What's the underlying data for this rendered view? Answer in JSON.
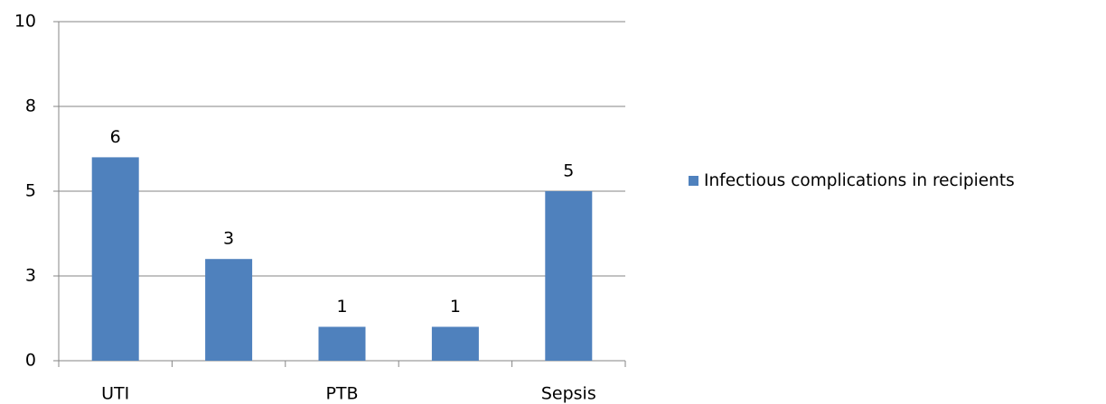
{
  "chart_data": {
    "type": "bar",
    "categories": [
      "UTI",
      null,
      "PTB",
      null,
      "Sepsis"
    ],
    "series": [
      {
        "name": "Infectious complications in recipients",
        "color": "#4f81bd",
        "values": [
          6,
          3,
          1,
          1,
          5
        ]
      }
    ],
    "ylim": [
      0,
      10
    ],
    "yticks": [
      0,
      {
        "value": 2.5,
        "label": "3"
      },
      5,
      {
        "value": 7.5,
        "label": "8"
      },
      10
    ],
    "grid": true,
    "legend": "right"
  }
}
